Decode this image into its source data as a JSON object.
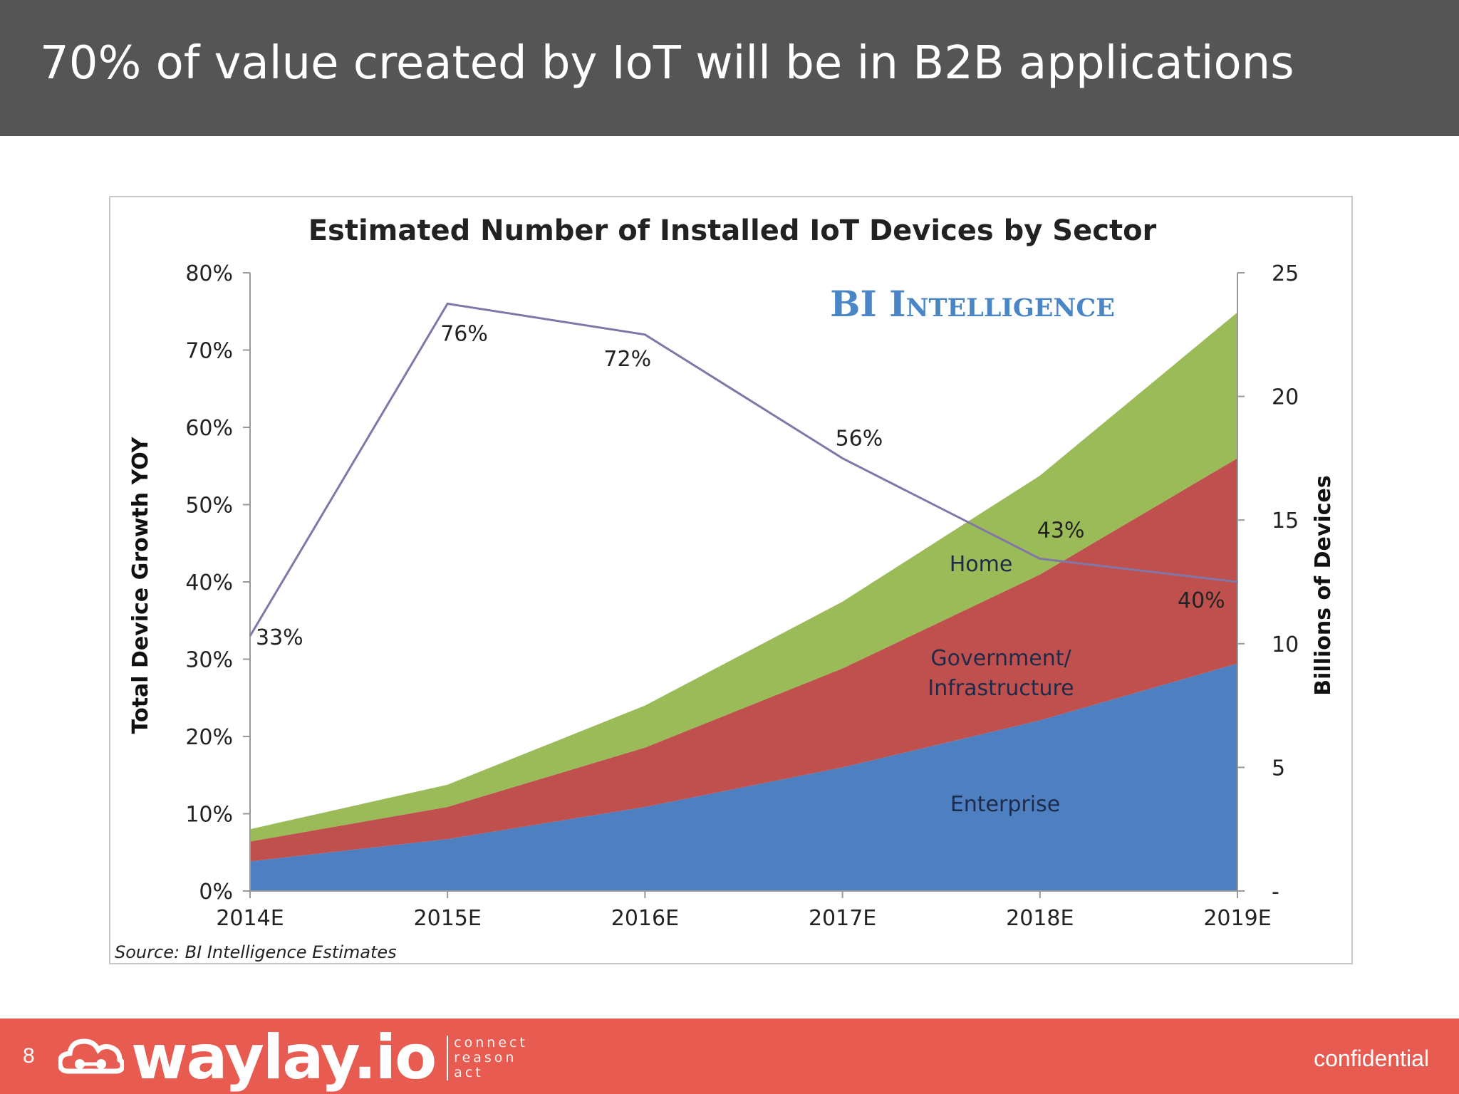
{
  "slide": {
    "title": "70% of value created by IoT will be in B2B applications",
    "page_number": "8",
    "footer_label": "confidential",
    "logo_text": "waylay.io",
    "logo_tagline": [
      "connect",
      "reason",
      "act"
    ],
    "colors": {
      "header": "#555555",
      "footer": "#e85b50"
    }
  },
  "chart_data": {
    "type": "area",
    "title": "Estimated Number of Installed IoT Devices by Sector",
    "watermark": "BI Intelligence",
    "source": "Source: BI Intelligence Estimates",
    "categories": [
      "2014E",
      "2015E",
      "2016E",
      "2017E",
      "2018E",
      "2019E"
    ],
    "stacked": true,
    "series": [
      {
        "name": "Enterprise",
        "color": "#4e7fc0",
        "values": [
          1.2,
          2.1,
          3.4,
          5.0,
          6.9,
          9.2
        ]
      },
      {
        "name": "Government/ Infrastructure",
        "color": "#c0504d",
        "values": [
          0.8,
          1.3,
          2.4,
          4.0,
          5.9,
          8.3
        ]
      },
      {
        "name": "Home",
        "color": "#9bbb59",
        "values": [
          0.5,
          0.9,
          1.7,
          2.7,
          4.0,
          5.9
        ]
      }
    ],
    "line_series": {
      "name": "Total Device Growth YOY",
      "color": "#8076a8",
      "values": [
        33,
        76,
        72,
        56,
        43,
        40
      ],
      "labels": [
        "33%",
        "76%",
        "72%",
        "56%",
        "43%",
        "40%"
      ]
    },
    "y_left": {
      "label": "Total Device Growth YOY",
      "ylim": [
        0,
        80
      ],
      "ticks": [
        "0%",
        "10%",
        "20%",
        "30%",
        "40%",
        "50%",
        "60%",
        "70%",
        "80%"
      ]
    },
    "y_right": {
      "label": "Billions of Devices",
      "ylim": [
        0,
        25
      ],
      "ticks": [
        "-",
        "5",
        "10",
        "15",
        "20",
        "25"
      ]
    },
    "area_labels": [
      "Home",
      "Government/",
      "Infrastructure",
      "Enterprise"
    ],
    "grid": false,
    "legend": "inline"
  }
}
